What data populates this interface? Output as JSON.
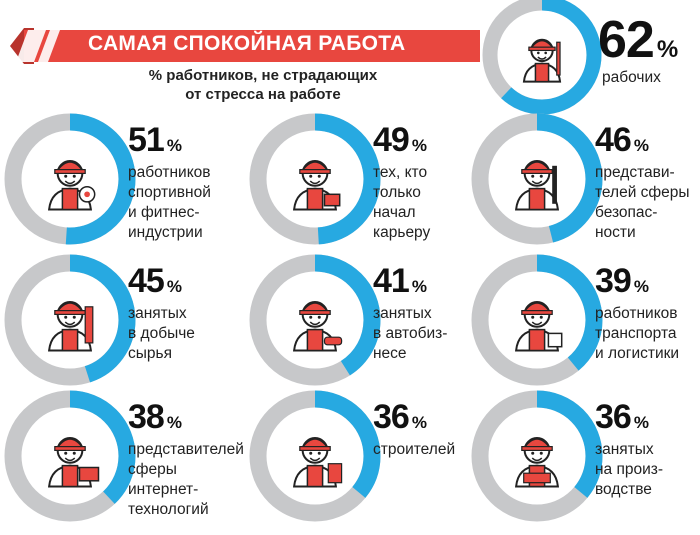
{
  "header": {
    "title": "САМАЯ СПОКОЙНАЯ РАБОТА",
    "subtitle_lines": [
      "% работников, не страдающих",
      "от стресса на работе"
    ]
  },
  "colors": {
    "accent_blue": "#27a9e1",
    "ring_gray": "#c7c8ca",
    "banner_red": "#e8473f",
    "figure_red": "#e8473f"
  },
  "items": [
    {
      "value": 62,
      "sign": "%",
      "lines": [
        "рабочих"
      ],
      "icon": "worker-with-wrench-icon"
    },
    {
      "value": 51,
      "sign": "%",
      "lines": [
        "работников",
        "спортивной",
        "и фитнес-",
        "индустрии"
      ],
      "icon": "athlete-with-ball-icon"
    },
    {
      "value": 49,
      "sign": "%",
      "lines": [
        "тех, кто",
        "только",
        "начал",
        "карьеру"
      ],
      "icon": "newcomer-with-bag-icon"
    },
    {
      "value": 46,
      "sign": "%",
      "lines": [
        "представи-",
        "телей сферы",
        "безопас-",
        "ности"
      ],
      "icon": "security-guard-icon"
    },
    {
      "value": 45,
      "sign": "%",
      "lines": [
        "занятых",
        "в добыче",
        "сырья"
      ],
      "icon": "miner-icon"
    },
    {
      "value": 41,
      "sign": "%",
      "lines": [
        "занятых",
        "в автобиз-",
        "несе"
      ],
      "icon": "car-dealer-icon"
    },
    {
      "value": 39,
      "sign": "%",
      "lines": [
        "работников",
        "транспорта",
        "и логистики"
      ],
      "icon": "logistics-worker-icon"
    },
    {
      "value": 38,
      "sign": "%",
      "lines": [
        "представителей",
        "сферы",
        "интернет-",
        "технологий"
      ],
      "icon": "it-specialist-icon"
    },
    {
      "value": 36,
      "sign": "%",
      "lines": [
        "строителей"
      ],
      "icon": "builder-icon"
    },
    {
      "value": 36,
      "sign": "%",
      "lines": [
        "занятых",
        "на произ-",
        "водстве"
      ],
      "icon": "factory-worker-icon"
    }
  ],
  "chart_data": {
    "type": "pie",
    "title": "САМАЯ СПОКОЙНАЯ РАБОТА",
    "subtitle": "% работников, не страдающих от стресса на работе",
    "categories": [
      "рабочих",
      "работников спортивной и фитнес-индустрии",
      "тех, кто только начал карьеру",
      "представителей сферы безопасности",
      "занятых в добыче сырья",
      "занятых в автобизнесе",
      "работников транспорта и логистики",
      "представителей сферы интернет-технологий",
      "строителей",
      "занятых на производстве"
    ],
    "values": [
      62,
      51,
      49,
      46,
      45,
      41,
      39,
      38,
      36,
      36
    ],
    "unit": "%"
  }
}
